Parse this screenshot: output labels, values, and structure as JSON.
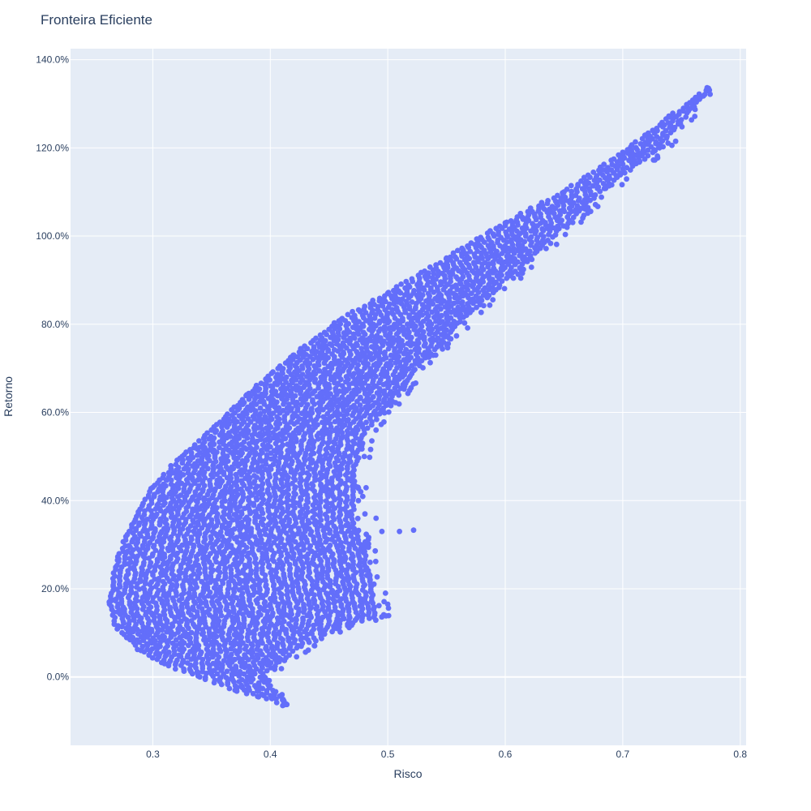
{
  "chart_data": {
    "type": "scatter",
    "title": "Fronteira Eficiente",
    "xlabel": "Risco",
    "ylabel": "Retorno",
    "xlim": [
      0.23,
      0.805
    ],
    "ylim": [
      -0.155,
      1.425
    ],
    "x_ticks": [
      0.3,
      0.4,
      0.5,
      0.6,
      0.7,
      0.8
    ],
    "x_tick_labels": [
      "0.3",
      "0.4",
      "0.5",
      "0.6",
      "0.7",
      "0.8"
    ],
    "y_ticks": [
      0.0,
      0.2,
      0.4,
      0.6,
      0.8,
      1.0,
      1.2,
      1.4
    ],
    "y_tick_labels": [
      "0.0%",
      "20.0%",
      "40.0%",
      "60.0%",
      "80.0%",
      "100.0%",
      "120.0%",
      "140.0%"
    ],
    "grid": true,
    "legend": "none",
    "marker_color": "#636efa",
    "plot_bgcolor": "#e5ecf6",
    "frontier_upper": [
      [
        0.263,
        0.17
      ],
      [
        0.27,
        0.265
      ],
      [
        0.28,
        0.33
      ],
      [
        0.3,
        0.43
      ],
      [
        0.325,
        0.5
      ],
      [
        0.35,
        0.56
      ],
      [
        0.38,
        0.64
      ],
      [
        0.42,
        0.73
      ],
      [
        0.46,
        0.81
      ],
      [
        0.5,
        0.87
      ],
      [
        0.55,
        0.95
      ],
      [
        0.6,
        1.03
      ],
      [
        0.65,
        1.1
      ],
      [
        0.7,
        1.19
      ],
      [
        0.74,
        1.27
      ],
      [
        0.773,
        1.335
      ]
    ],
    "frontier_lower": [
      [
        0.263,
        0.17
      ],
      [
        0.27,
        0.11
      ],
      [
        0.29,
        0.06
      ],
      [
        0.31,
        0.03
      ],
      [
        0.34,
        0.0
      ],
      [
        0.37,
        -0.03
      ],
      [
        0.39,
        -0.045
      ],
      [
        0.412,
        -0.063
      ]
    ],
    "outliers": [
      [
        0.41,
        -0.04
      ],
      [
        0.413,
        -0.062
      ],
      [
        0.405,
        -0.05
      ],
      [
        0.4,
        -0.02
      ],
      [
        0.39,
        -0.03
      ],
      [
        0.395,
        0.0
      ],
      [
        0.51,
        0.33
      ],
      [
        0.522,
        0.333
      ],
      [
        0.495,
        0.33
      ],
      [
        0.49,
        0.36
      ],
      [
        0.5,
        0.165
      ],
      [
        0.498,
        0.19
      ],
      [
        0.485,
        0.22
      ],
      [
        0.485,
        0.26
      ],
      [
        0.48,
        0.3
      ],
      [
        0.48,
        0.5
      ],
      [
        0.475,
        0.4
      ],
      [
        0.477,
        0.42
      ],
      [
        0.47,
        0.46
      ],
      [
        0.49,
        0.56
      ]
    ]
  }
}
